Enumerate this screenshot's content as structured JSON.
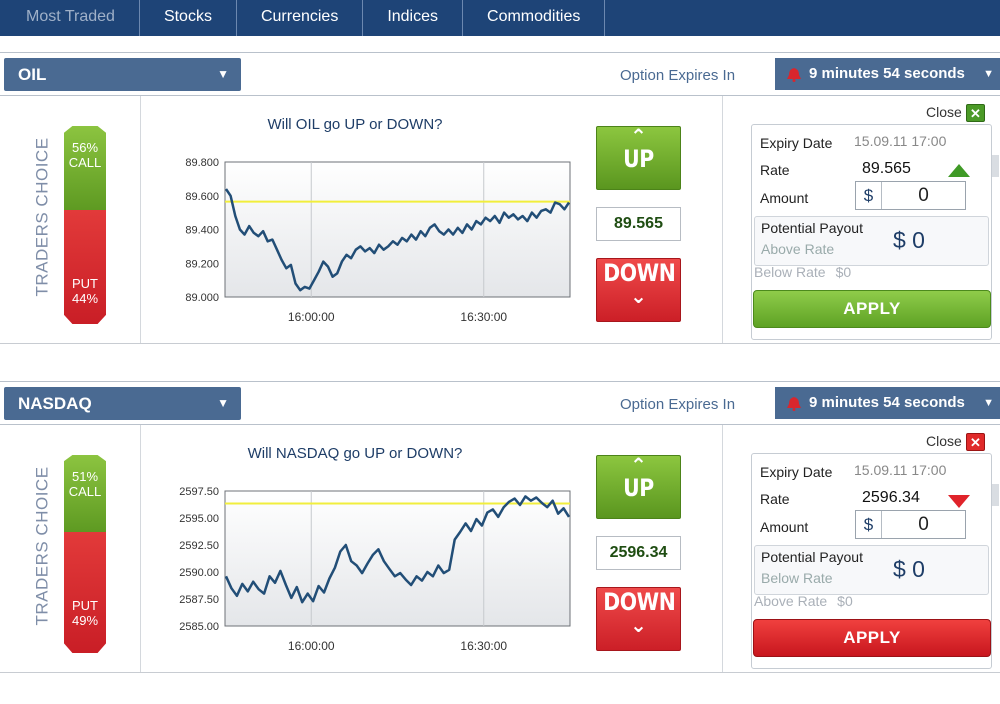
{
  "nav": {
    "tabs": [
      {
        "label": "Most Traded",
        "active": true
      },
      {
        "label": "Stocks"
      },
      {
        "label": "Currencies"
      },
      {
        "label": "Indices"
      },
      {
        "label": "Commodities"
      }
    ]
  },
  "panels": [
    {
      "asset": "OIL",
      "expires_label": "Option Expires In",
      "expires_value": "9 minutes 54 seconds",
      "traders_choice_label": "TRADERS CHOICE",
      "call_pct": "56%",
      "call_label": "CALL",
      "put_label": "PUT",
      "put_pct": "44%",
      "call_fraction": 0.56,
      "question": "Will OIL go UP or DOWN?",
      "up_label": "UP",
      "down_label": "DOWN",
      "rate": "89.565",
      "close_label": "Close",
      "form": {
        "expiry_label": "Expiry Date",
        "expiry_value": "15.09.11 17:00",
        "rate_label": "Rate",
        "rate_value": "89.565",
        "direction": "up",
        "amount_label": "Amount",
        "currency": "$",
        "amount_value": "0",
        "payout_label": "Potential Payout",
        "payout_sub": "Above Rate",
        "payout_value": "$ 0",
        "other_label": "Below Rate",
        "other_value": "$0",
        "apply_label": "APPLY",
        "apply_color": "#6bb02c"
      },
      "chart_data": {
        "type": "line",
        "yticks": [
          "89.800",
          "89.600",
          "89.400",
          "89.200",
          "89.000"
        ],
        "ylim": [
          89.0,
          89.8
        ],
        "xticks": [
          "16:00:00",
          "16:30:00"
        ],
        "xtick_minutes": [
          15,
          45
        ],
        "xlim_minutes": [
          0,
          60
        ],
        "strike": 89.565,
        "series": [
          {
            "values": [
              89.64,
              89.6,
              89.48,
              89.4,
              89.37,
              89.42,
              89.38,
              89.36,
              89.39,
              89.33,
              89.34,
              89.28,
              89.22,
              89.17,
              89.19,
              89.08,
              89.04,
              89.06,
              89.05,
              89.1,
              89.15,
              89.21,
              89.18,
              89.12,
              89.14,
              89.21,
              89.25,
              89.23,
              89.28,
              89.3,
              89.27,
              89.29,
              89.26,
              89.31,
              89.28,
              89.3,
              89.33,
              89.31,
              89.35,
              89.33,
              89.37,
              89.34,
              89.39,
              89.36,
              89.41,
              89.43,
              89.39,
              89.37,
              89.4,
              89.37,
              89.41,
              89.38,
              89.43,
              89.4,
              89.45,
              89.43,
              89.47,
              89.45,
              89.48,
              89.44,
              89.5,
              89.47,
              89.49,
              89.46,
              89.48,
              89.45,
              89.5,
              89.47,
              89.51,
              89.52,
              89.5,
              89.56,
              89.55,
              89.52,
              89.56
            ]
          }
        ]
      }
    },
    {
      "asset": "NASDAQ",
      "expires_label": "Option Expires In",
      "expires_value": "9 minutes 54 seconds",
      "traders_choice_label": "TRADERS CHOICE",
      "call_pct": "51%",
      "call_label": "CALL",
      "put_label": "PUT",
      "put_pct": "49%",
      "call_fraction": 0.51,
      "question": "Will NASDAQ go UP or DOWN?",
      "up_label": "UP",
      "down_label": "DOWN",
      "rate": "2596.34",
      "close_label": "Close",
      "form": {
        "expiry_label": "Expiry Date",
        "expiry_value": "15.09.11 17:00",
        "rate_label": "Rate",
        "rate_value": "2596.34",
        "direction": "down",
        "amount_label": "Amount",
        "currency": "$",
        "amount_value": "0",
        "payout_label": "Potential Payout",
        "payout_sub": "Below Rate",
        "payout_value": "$ 0",
        "other_label": "Above Rate",
        "other_value": "$0",
        "apply_label": "APPLY",
        "apply_color": "#e02a2a"
      },
      "chart_data": {
        "type": "line",
        "yticks": [
          "2597.50",
          "2595.00",
          "2592.50",
          "2590.00",
          "2587.50",
          "2585.00"
        ],
        "ylim": [
          2585.0,
          2597.5
        ],
        "xticks": [
          "16:00:00",
          "16:30:00"
        ],
        "xtick_minutes": [
          15,
          45
        ],
        "xlim_minutes": [
          0,
          60
        ],
        "strike": 2596.34,
        "series": [
          {
            "values": [
              2589.6,
              2588.5,
              2587.8,
              2588.9,
              2588.2,
              2589.1,
              2588.4,
              2588.0,
              2589.6,
              2589.0,
              2590.1,
              2588.8,
              2587.6,
              2588.6,
              2587.2,
              2588.0,
              2587.3,
              2588.7,
              2588.1,
              2589.4,
              2590.4,
              2591.9,
              2592.5,
              2591.0,
              2590.6,
              2589.9,
              2590.8,
              2591.6,
              2592.1,
              2591.0,
              2590.3,
              2589.6,
              2589.9,
              2589.3,
              2588.8,
              2589.6,
              2589.2,
              2590.0,
              2589.6,
              2590.6,
              2589.9,
              2590.2,
              2593.0,
              2593.7,
              2594.5,
              2593.8,
              2594.9,
              2594.3,
              2595.5,
              2595.8,
              2595.1,
              2596.0,
              2596.5,
              2596.8,
              2596.2,
              2597.0,
              2596.6,
              2596.9,
              2596.4,
              2596.0,
              2596.6,
              2595.4,
              2595.9,
              2595.1
            ]
          }
        ]
      }
    }
  ]
}
